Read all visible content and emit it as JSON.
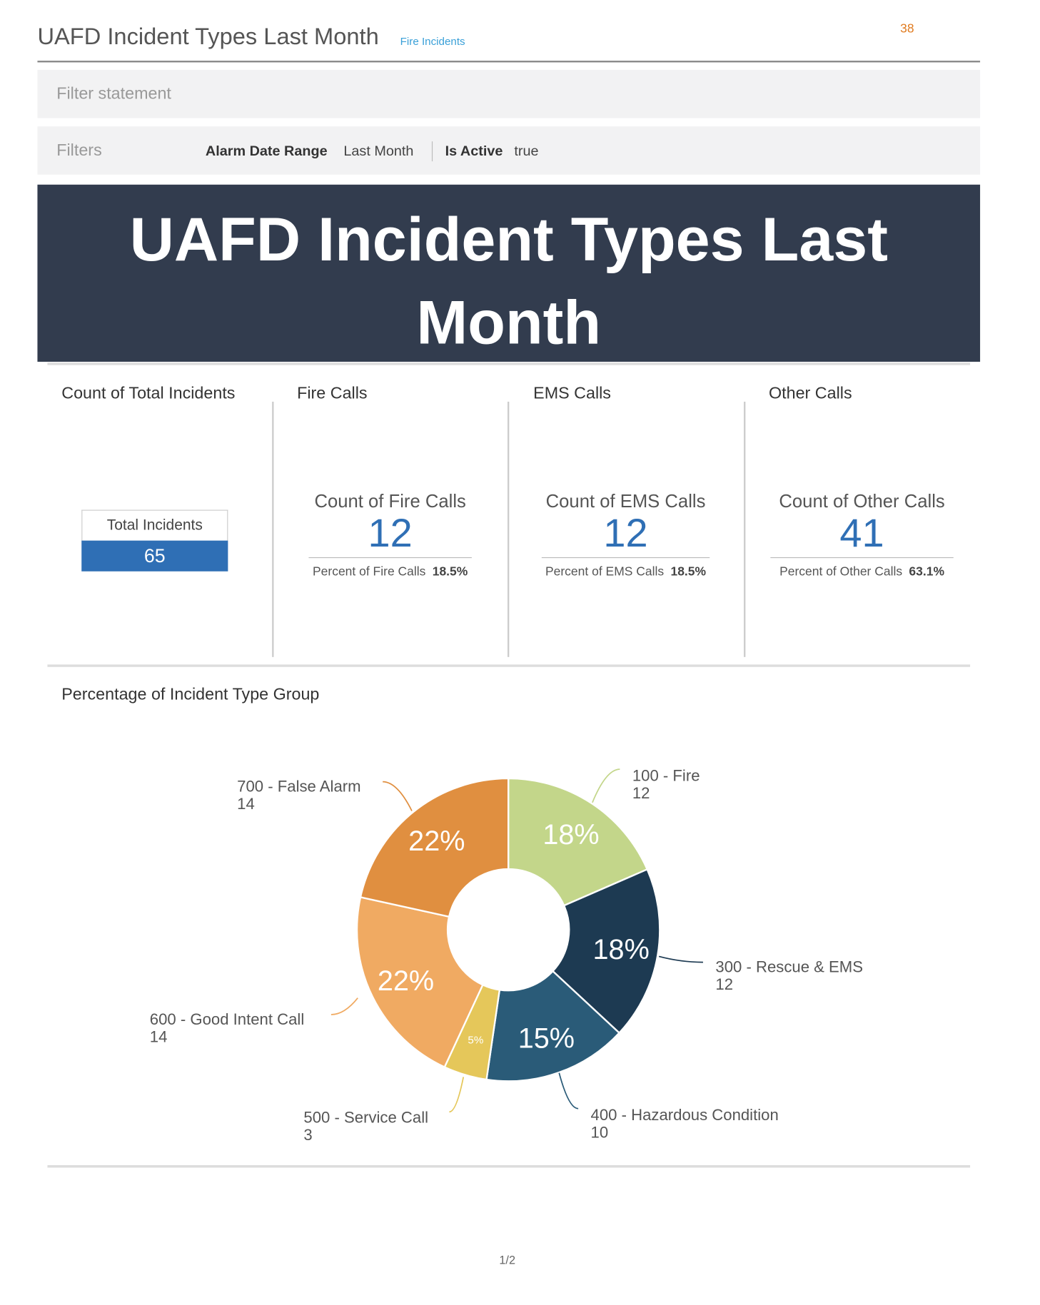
{
  "header": {
    "title": "UAFD Incident Types Last Month",
    "link": "Fire Incidents",
    "page_count": 38
  },
  "filter_statement": "Filter statement",
  "filters": {
    "label": "Filters",
    "items": [
      {
        "name": "Alarm Date Range",
        "value": "Last Month"
      },
      {
        "name": "Is Active",
        "value": "true"
      }
    ]
  },
  "banner": "UAFD Incident Types Last Month",
  "tiles": [
    {
      "title": "Count of Total Incidents",
      "label": "Total Incidents",
      "value": 65
    },
    {
      "title": "Fire Calls",
      "label": "Count of Fire Calls",
      "value": 12,
      "percent_label": "Percent of Fire Calls",
      "percent": "18.5%"
    },
    {
      "title": "EMS Calls",
      "label": "Count of EMS Calls",
      "value": 12,
      "percent_label": "Percent of EMS Calls",
      "percent": "18.5%"
    },
    {
      "title": "Other Calls",
      "label": "Count of Other Calls",
      "value": 41,
      "percent_label": "Percent of Other Calls",
      "percent": "63.1%"
    }
  ],
  "chart_data": {
    "type": "pie",
    "donut": true,
    "title": "Percentage of Incident Type Group",
    "categories": [
      "100 - Fire",
      "300 - Rescue & EMS",
      "400 - Hazardous Condition",
      "500 - Service Call",
      "600 - Good Intent Call",
      "700 - False Alarm"
    ],
    "values": [
      12,
      12,
      10,
      3,
      14,
      14
    ],
    "percent_labels": [
      "18%",
      "18%",
      "15%",
      "5%",
      "22%",
      "22%"
    ],
    "colors": [
      "#c3d68a",
      "#1d3a52",
      "#2a5b78",
      "#e5c75a",
      "#f0aa62",
      "#e08f40"
    ]
  },
  "footer": "1/2"
}
